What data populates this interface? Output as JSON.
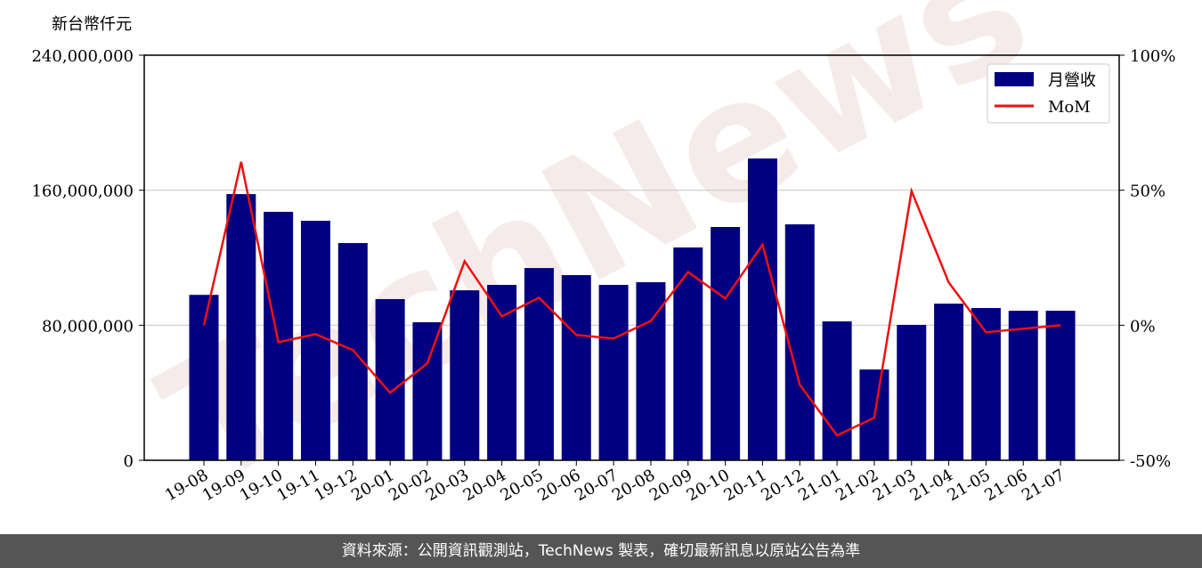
{
  "chart_data": {
    "type": "bar-line",
    "ylabel": "新台幣仟元",
    "watermark": "TechNews",
    "categories": [
      "19-08",
      "19-09",
      "19-10",
      "19-11",
      "19-12",
      "20-01",
      "20-02",
      "20-03",
      "20-04",
      "20-05",
      "20-06",
      "20-07",
      "20-08",
      "20-09",
      "20-10",
      "20-11",
      "20-12",
      "21-01",
      "21-02",
      "21-03",
      "21-04",
      "21-05",
      "21-06",
      "21-07"
    ],
    "series": [
      {
        "name": "月營收",
        "type": "bar",
        "color": "#000080",
        "values": [
          98000000,
          157700000,
          147200000,
          141900000,
          128700000,
          95500000,
          81800000,
          100700000,
          103900000,
          113900000,
          109700000,
          103900000,
          105500000,
          126100000,
          138200000,
          178800000,
          139800000,
          82300000,
          53800000,
          80200000,
          92800000,
          90200000,
          88600000,
          88600000
        ]
      },
      {
        "name": "MoM",
        "type": "line",
        "axis": "y2",
        "color": "#ee1111",
        "values": [
          0,
          60.5,
          -6.3,
          -3.3,
          -9.2,
          -25,
          -14.1,
          23.7,
          3.3,
          10.2,
          -3.6,
          -4.9,
          1.6,
          19.7,
          9.9,
          29.9,
          -22,
          -40.8,
          -34.2,
          49.7,
          15.8,
          -2.6,
          -1.3,
          0
        ]
      }
    ],
    "ylim": [
      0,
      240000000
    ],
    "yticks": [
      {
        "value": 0,
        "label": "0"
      },
      {
        "value": 80000000,
        "label": "80,000,000"
      },
      {
        "value": 160000000,
        "label": "160,000,000"
      },
      {
        "value": 240000000,
        "label": "240,000,000"
      }
    ],
    "y2lim": [
      -50,
      100
    ],
    "y2ticks": [
      {
        "value": -50,
        "label": "-50%"
      },
      {
        "value": 0,
        "label": "0%"
      },
      {
        "value": 50,
        "label": "50%"
      },
      {
        "value": 100,
        "label": "100%"
      }
    ],
    "grid": true,
    "legend": "upper right"
  },
  "footer": "資料來源：公開資訊觀測站，TechNews 製表，確切最新訊息以原站公告為準"
}
